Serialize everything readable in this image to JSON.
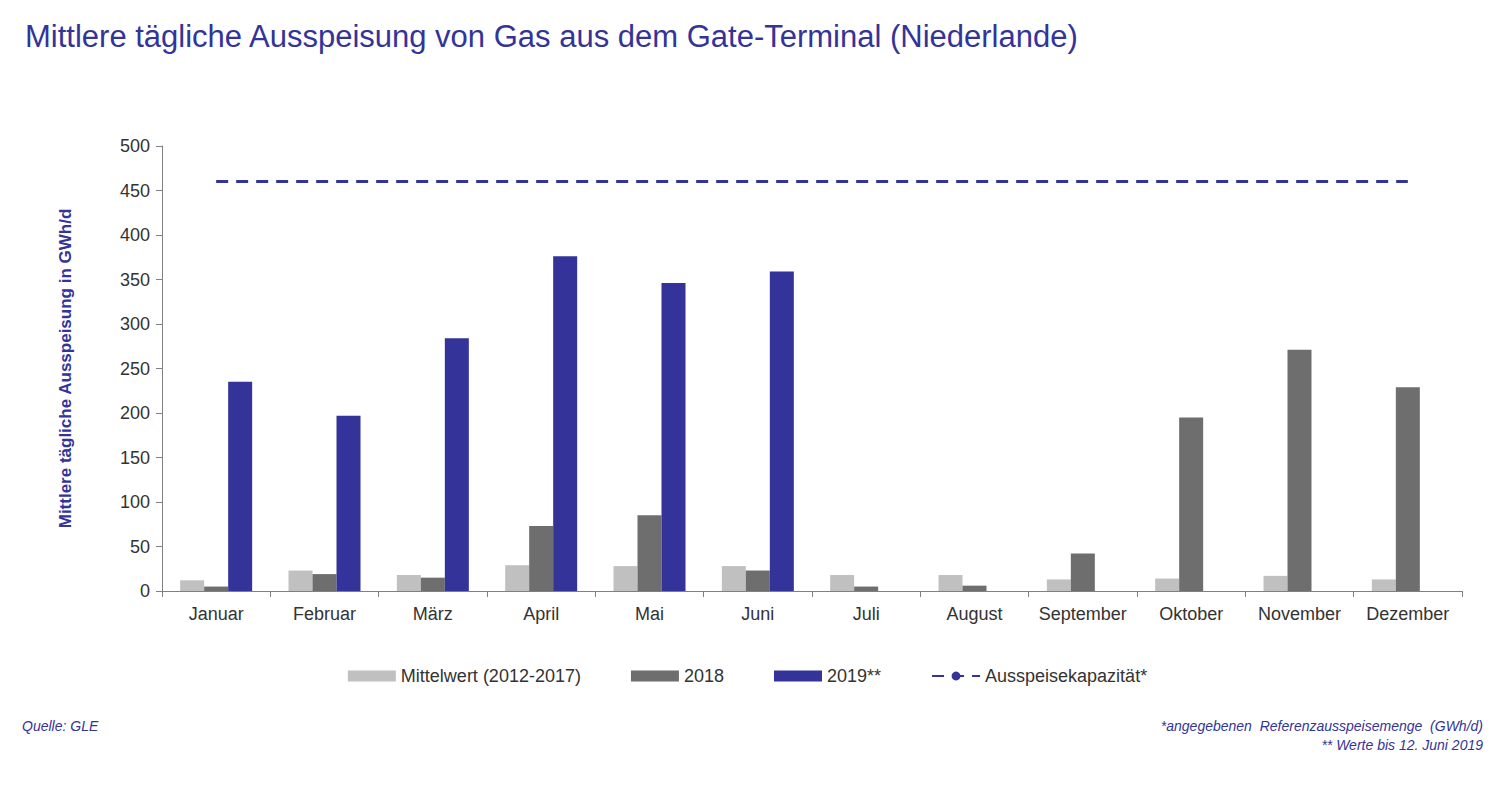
{
  "chart_data": {
    "type": "bar",
    "title": "Mittlere tägliche Ausspeisung von Gas aus dem Gate-Terminal (Niederlande)",
    "y_label": "Mittlere tägliche Ausspeisung in GWh/d",
    "categories": [
      "Januar",
      "Februar",
      "März",
      "April",
      "Mai",
      "Juni",
      "Juli",
      "August",
      "September",
      "Oktober",
      "November",
      "Dezember"
    ],
    "series": [
      {
        "name": "Mittelwert (2012-2017)",
        "type": "bar",
        "color": "#c0c0c0",
        "values": [
          12,
          23,
          18,
          29,
          28,
          28,
          18,
          18,
          13,
          14,
          17,
          13
        ]
      },
      {
        "name": "2018",
        "type": "bar",
        "color": "#6e6e6e",
        "values": [
          5,
          19,
          15,
          73,
          85,
          23,
          5,
          6,
          42,
          195,
          271,
          229
        ]
      },
      {
        "name": "2019**",
        "type": "bar",
        "color": "#333399",
        "values": [
          235,
          197,
          284,
          376,
          346,
          359,
          null,
          null,
          null,
          null,
          null,
          null
        ]
      },
      {
        "name": "Ausspeisekapazität*",
        "type": "line",
        "color": "#333399",
        "line_style": "dashed",
        "values": [
          460,
          460,
          460,
          460,
          460,
          460,
          460,
          460,
          460,
          460,
          460,
          460
        ]
      }
    ],
    "ylim": [
      0,
      500
    ],
    "yticks": [
      0,
      50,
      100,
      150,
      200,
      250,
      300,
      350,
      400,
      450,
      500
    ],
    "grid": false,
    "legend": "bottom",
    "annotations": {
      "source": "Quelle: GLE",
      "footnotes": [
        "*angegebenen  Referenzausspeisemenge  (GWh/d)",
        "** Werte bis 12. Juni 2019"
      ]
    }
  }
}
